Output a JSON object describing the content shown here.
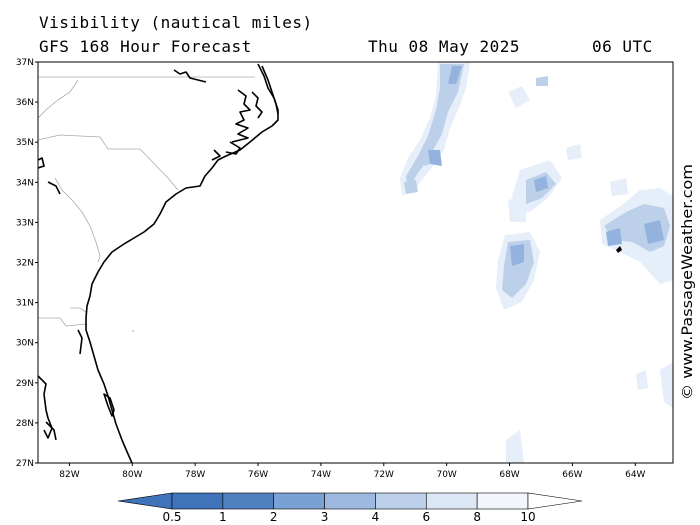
{
  "title": {
    "line1": "Visibility (nautical miles)",
    "line2": "GFS 168 Hour Forecast",
    "date": "Thu 08 May 2025",
    "time": "06 UTC"
  },
  "axes": {
    "lat_labels": [
      "37N",
      "36N",
      "35N",
      "34N",
      "33N",
      "32N",
      "31N",
      "30N",
      "29N",
      "28N",
      "27N"
    ],
    "lat_values": [
      37,
      36,
      35,
      34,
      33,
      32,
      31,
      30,
      29,
      28,
      27
    ],
    "lon_labels": [
      "82W",
      "80W",
      "78W",
      "76W",
      "74W",
      "72W",
      "70W",
      "68W",
      "66W",
      "64W"
    ],
    "lon_values": [
      -82,
      -80,
      -78,
      -76,
      -74,
      -72,
      -70,
      -68,
      -66,
      -64
    ],
    "lon_range": [
      -83,
      -62.8
    ],
    "lat_range": [
      27,
      37
    ]
  },
  "legend": {
    "labels": [
      "0.5",
      "1",
      "2",
      "3",
      "4",
      "6",
      "8",
      "10"
    ],
    "colors": [
      "#3f73ba",
      "#4f80c0",
      "#7aa1d3",
      "#9db9e0",
      "#bcd0ea",
      "#dce7f5",
      "#f2f6fc"
    ]
  },
  "credit": "© www.PassageWeather.com",
  "colors": {
    "coast": "#000000",
    "border": "#aaaaaa",
    "fog_light": "#e6eef9",
    "fog_mid": "#bcd0ea",
    "fog_dark": "#93b2dd"
  }
}
